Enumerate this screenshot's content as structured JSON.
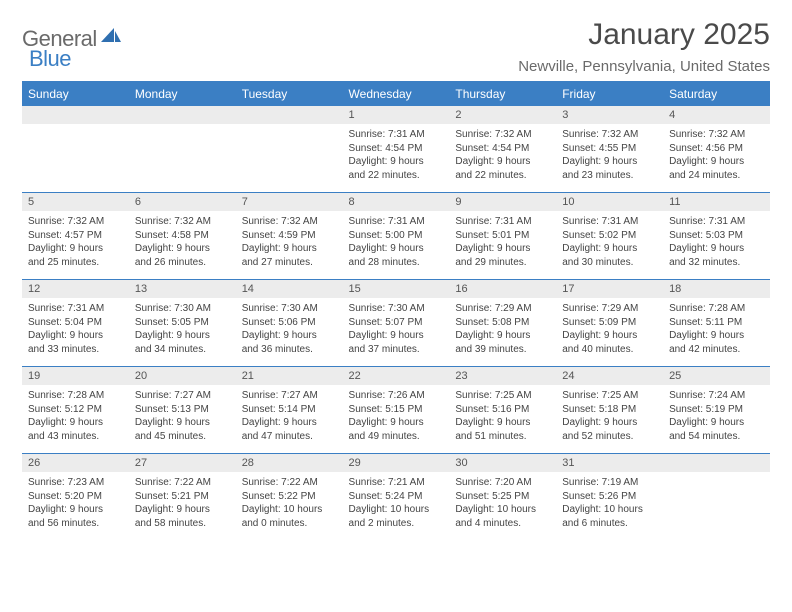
{
  "brand": {
    "text1": "General",
    "text2": "Blue"
  },
  "title": "January 2025",
  "location": "Newville, Pennsylvania, United States",
  "colors": {
    "brand_blue": "#3b7fc4",
    "header_text": "#ffffff",
    "grey_bar": "#ececec"
  },
  "day_headers": [
    "Sunday",
    "Monday",
    "Tuesday",
    "Wednesday",
    "Thursday",
    "Friday",
    "Saturday"
  ],
  "weeks": [
    [
      null,
      null,
      null,
      {
        "n": "1",
        "sr": "Sunrise: 7:31 AM",
        "ss": "Sunset: 4:54 PM",
        "d1": "Daylight: 9 hours",
        "d2": "and 22 minutes."
      },
      {
        "n": "2",
        "sr": "Sunrise: 7:32 AM",
        "ss": "Sunset: 4:54 PM",
        "d1": "Daylight: 9 hours",
        "d2": "and 22 minutes."
      },
      {
        "n": "3",
        "sr": "Sunrise: 7:32 AM",
        "ss": "Sunset: 4:55 PM",
        "d1": "Daylight: 9 hours",
        "d2": "and 23 minutes."
      },
      {
        "n": "4",
        "sr": "Sunrise: 7:32 AM",
        "ss": "Sunset: 4:56 PM",
        "d1": "Daylight: 9 hours",
        "d2": "and 24 minutes."
      }
    ],
    [
      {
        "n": "5",
        "sr": "Sunrise: 7:32 AM",
        "ss": "Sunset: 4:57 PM",
        "d1": "Daylight: 9 hours",
        "d2": "and 25 minutes."
      },
      {
        "n": "6",
        "sr": "Sunrise: 7:32 AM",
        "ss": "Sunset: 4:58 PM",
        "d1": "Daylight: 9 hours",
        "d2": "and 26 minutes."
      },
      {
        "n": "7",
        "sr": "Sunrise: 7:32 AM",
        "ss": "Sunset: 4:59 PM",
        "d1": "Daylight: 9 hours",
        "d2": "and 27 minutes."
      },
      {
        "n": "8",
        "sr": "Sunrise: 7:31 AM",
        "ss": "Sunset: 5:00 PM",
        "d1": "Daylight: 9 hours",
        "d2": "and 28 minutes."
      },
      {
        "n": "9",
        "sr": "Sunrise: 7:31 AM",
        "ss": "Sunset: 5:01 PM",
        "d1": "Daylight: 9 hours",
        "d2": "and 29 minutes."
      },
      {
        "n": "10",
        "sr": "Sunrise: 7:31 AM",
        "ss": "Sunset: 5:02 PM",
        "d1": "Daylight: 9 hours",
        "d2": "and 30 minutes."
      },
      {
        "n": "11",
        "sr": "Sunrise: 7:31 AM",
        "ss": "Sunset: 5:03 PM",
        "d1": "Daylight: 9 hours",
        "d2": "and 32 minutes."
      }
    ],
    [
      {
        "n": "12",
        "sr": "Sunrise: 7:31 AM",
        "ss": "Sunset: 5:04 PM",
        "d1": "Daylight: 9 hours",
        "d2": "and 33 minutes."
      },
      {
        "n": "13",
        "sr": "Sunrise: 7:30 AM",
        "ss": "Sunset: 5:05 PM",
        "d1": "Daylight: 9 hours",
        "d2": "and 34 minutes."
      },
      {
        "n": "14",
        "sr": "Sunrise: 7:30 AM",
        "ss": "Sunset: 5:06 PM",
        "d1": "Daylight: 9 hours",
        "d2": "and 36 minutes."
      },
      {
        "n": "15",
        "sr": "Sunrise: 7:30 AM",
        "ss": "Sunset: 5:07 PM",
        "d1": "Daylight: 9 hours",
        "d2": "and 37 minutes."
      },
      {
        "n": "16",
        "sr": "Sunrise: 7:29 AM",
        "ss": "Sunset: 5:08 PM",
        "d1": "Daylight: 9 hours",
        "d2": "and 39 minutes."
      },
      {
        "n": "17",
        "sr": "Sunrise: 7:29 AM",
        "ss": "Sunset: 5:09 PM",
        "d1": "Daylight: 9 hours",
        "d2": "and 40 minutes."
      },
      {
        "n": "18",
        "sr": "Sunrise: 7:28 AM",
        "ss": "Sunset: 5:11 PM",
        "d1": "Daylight: 9 hours",
        "d2": "and 42 minutes."
      }
    ],
    [
      {
        "n": "19",
        "sr": "Sunrise: 7:28 AM",
        "ss": "Sunset: 5:12 PM",
        "d1": "Daylight: 9 hours",
        "d2": "and 43 minutes."
      },
      {
        "n": "20",
        "sr": "Sunrise: 7:27 AM",
        "ss": "Sunset: 5:13 PM",
        "d1": "Daylight: 9 hours",
        "d2": "and 45 minutes."
      },
      {
        "n": "21",
        "sr": "Sunrise: 7:27 AM",
        "ss": "Sunset: 5:14 PM",
        "d1": "Daylight: 9 hours",
        "d2": "and 47 minutes."
      },
      {
        "n": "22",
        "sr": "Sunrise: 7:26 AM",
        "ss": "Sunset: 5:15 PM",
        "d1": "Daylight: 9 hours",
        "d2": "and 49 minutes."
      },
      {
        "n": "23",
        "sr": "Sunrise: 7:25 AM",
        "ss": "Sunset: 5:16 PM",
        "d1": "Daylight: 9 hours",
        "d2": "and 51 minutes."
      },
      {
        "n": "24",
        "sr": "Sunrise: 7:25 AM",
        "ss": "Sunset: 5:18 PM",
        "d1": "Daylight: 9 hours",
        "d2": "and 52 minutes."
      },
      {
        "n": "25",
        "sr": "Sunrise: 7:24 AM",
        "ss": "Sunset: 5:19 PM",
        "d1": "Daylight: 9 hours",
        "d2": "and 54 minutes."
      }
    ],
    [
      {
        "n": "26",
        "sr": "Sunrise: 7:23 AM",
        "ss": "Sunset: 5:20 PM",
        "d1": "Daylight: 9 hours",
        "d2": "and 56 minutes."
      },
      {
        "n": "27",
        "sr": "Sunrise: 7:22 AM",
        "ss": "Sunset: 5:21 PM",
        "d1": "Daylight: 9 hours",
        "d2": "and 58 minutes."
      },
      {
        "n": "28",
        "sr": "Sunrise: 7:22 AM",
        "ss": "Sunset: 5:22 PM",
        "d1": "Daylight: 10 hours",
        "d2": "and 0 minutes."
      },
      {
        "n": "29",
        "sr": "Sunrise: 7:21 AM",
        "ss": "Sunset: 5:24 PM",
        "d1": "Daylight: 10 hours",
        "d2": "and 2 minutes."
      },
      {
        "n": "30",
        "sr": "Sunrise: 7:20 AM",
        "ss": "Sunset: 5:25 PM",
        "d1": "Daylight: 10 hours",
        "d2": "and 4 minutes."
      },
      {
        "n": "31",
        "sr": "Sunrise: 7:19 AM",
        "ss": "Sunset: 5:26 PM",
        "d1": "Daylight: 10 hours",
        "d2": "and 6 minutes."
      },
      null
    ]
  ]
}
